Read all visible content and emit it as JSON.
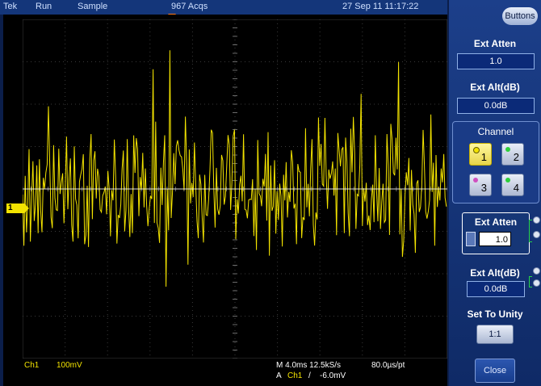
{
  "topbar": {
    "brand": "Tek",
    "run_state": "Run",
    "acq_mode": "Sample",
    "acqs": "967 Acqs",
    "datetime": "27 Sep 11 11:17:22"
  },
  "display": {
    "ch1_marker": "1",
    "readout": {
      "ch": "Ch1",
      "volts_div": "100mV",
      "timebase": "M 4.0ms 12.5kS/s",
      "sample_interval": "80.0µs/pt",
      "trig_prefix": "A",
      "trig_source": "Ch1",
      "trig_slope": "/",
      "trig_level": "-6.0mV"
    }
  },
  "panel": {
    "buttons_label": "Buttons",
    "ext_atten_title": "Ext Atten",
    "ext_atten_value": "1.0",
    "ext_alt_title": "Ext Alt(dB)",
    "ext_alt_value": "0.0dB",
    "channel_title": "Channel",
    "channels": [
      "1",
      "2",
      "3",
      "4"
    ],
    "selected_channel": "1",
    "ext_atten_edit_title": "Ext Atten",
    "ext_atten_edit_value": "1.0",
    "ext_alt_edit_title": "Ext Alt(dB)",
    "ext_alt_edit_value": "0.0dB",
    "set_unity_title": "Set To Unity",
    "set_unity_button": "1:1",
    "close_button": "Close"
  },
  "colors": {
    "trace": "#f3e300",
    "ch1": "#f3e300",
    "ch2": "#2ecf3a",
    "ch3": "#d050c0",
    "ch4": "#2ecf3a",
    "trigger_marker": "#ff7a1a"
  }
}
